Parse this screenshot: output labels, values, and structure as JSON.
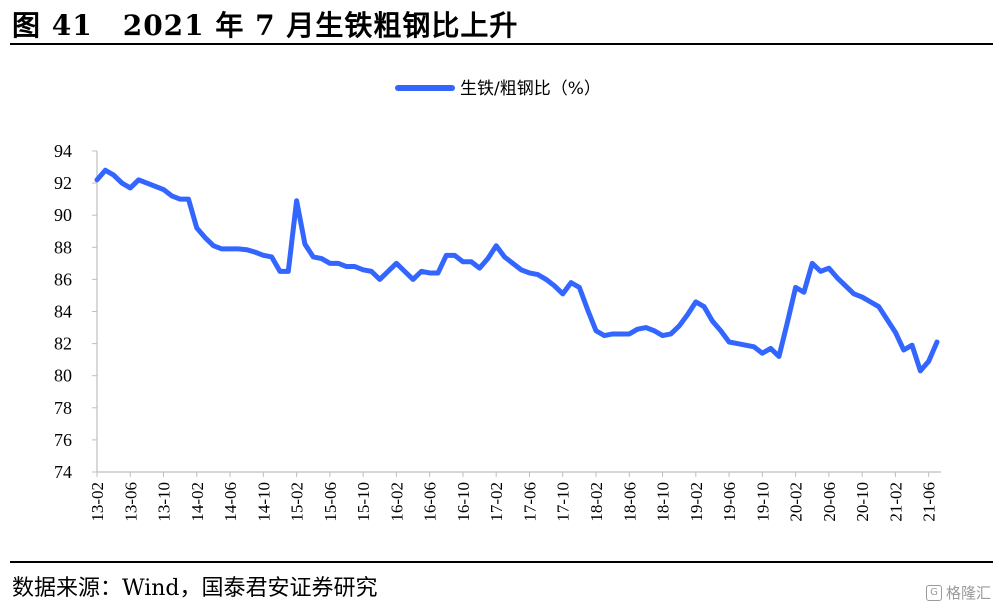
{
  "figure": {
    "title_num": "图 41",
    "title_text": "2021 年 7 月生铁粗钢比上升",
    "source": "数据来源：Wind，国泰君安证券研究",
    "watermark": "格隆汇",
    "watermark_icon": "G"
  },
  "chart_data": {
    "type": "line",
    "title": "2021 年 7 月生铁粗钢比上升",
    "legend_position": "top-center",
    "grid": false,
    "series": [
      {
        "name": "生铁/粗钢比（%）",
        "color": "#3366ff",
        "values": [
          92.2,
          92.8,
          92.5,
          92.0,
          91.7,
          92.2,
          92.0,
          91.8,
          91.6,
          91.2,
          91.0,
          91.0,
          89.2,
          88.6,
          88.1,
          87.9,
          87.9,
          87.9,
          87.85,
          87.7,
          87.5,
          87.4,
          86.5,
          86.5,
          90.9,
          88.2,
          87.4,
          87.3,
          87.0,
          87.0,
          86.8,
          86.8,
          86.6,
          86.5,
          86.0,
          86.5,
          87.0,
          86.5,
          86.0,
          86.5,
          86.4,
          86.4,
          87.5,
          87.5,
          87.1,
          87.1,
          86.7,
          87.3,
          88.1,
          87.4,
          87.0,
          86.6,
          86.4,
          86.3,
          86.0,
          85.6,
          85.1,
          85.8,
          85.5,
          84.1,
          82.8,
          82.5,
          82.6,
          82.6,
          82.6,
          82.9,
          83.0,
          82.8,
          82.5,
          82.6,
          83.1,
          83.8,
          84.6,
          84.3,
          83.4,
          82.8,
          82.1,
          82.0,
          81.9,
          81.8,
          81.4,
          81.7,
          81.2,
          83.3,
          85.5,
          85.2,
          87.0,
          86.5,
          86.7,
          86.1,
          85.6,
          85.1,
          84.9,
          84.6,
          84.3,
          83.5,
          82.7,
          81.6,
          81.9,
          80.3,
          80.9,
          82.1
        ]
      }
    ],
    "x_start": "13-02",
    "x_tick_labels": [
      "13-02",
      "13-06",
      "13-10",
      "14-02",
      "14-06",
      "14-10",
      "15-02",
      "15-06",
      "15-10",
      "16-02",
      "16-06",
      "16-10",
      "17-02",
      "17-06",
      "17-10",
      "18-02",
      "18-06",
      "18-10",
      "19-02",
      "19-06",
      "19-10",
      "20-02",
      "20-06",
      "20-10",
      "21-02",
      "21-06"
    ],
    "x_tick_step_months": 4,
    "y_ticks": [
      74,
      76,
      78,
      80,
      82,
      84,
      86,
      88,
      90,
      92,
      94
    ],
    "ylim": [
      74,
      94
    ],
    "xlabel": "",
    "ylabel": ""
  }
}
